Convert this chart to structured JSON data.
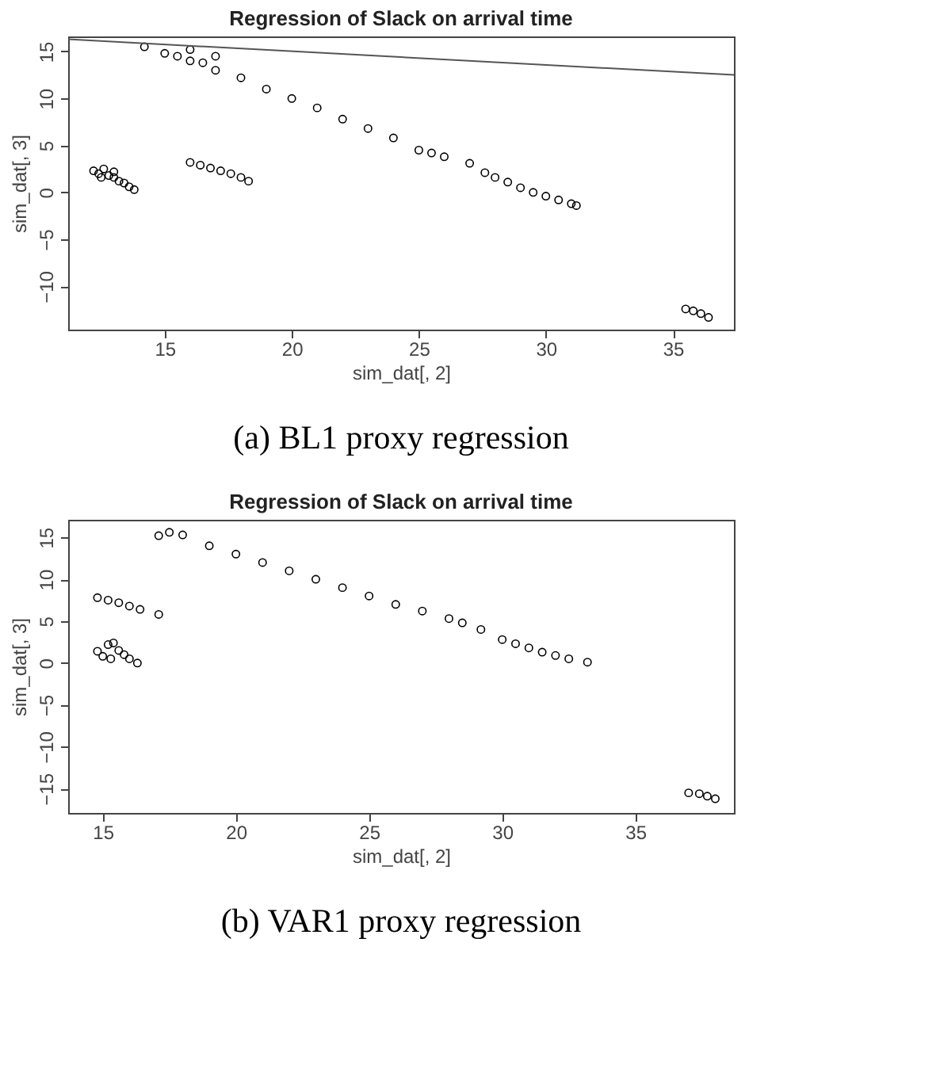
{
  "chart_data": [
    {
      "type": "scatter",
      "title": "Regression of Slack on arrival time",
      "xlabel": "sim_dat[, 2]",
      "ylabel": "sim_dat[, 3]",
      "marker": "circle",
      "grid": false,
      "xlim": [
        11.2,
        37.4
      ],
      "ylim": [
        -14.6,
        16.6
      ],
      "xticks": [
        15,
        20,
        25,
        30,
        35
      ],
      "yticks": [
        -10,
        -5,
        0,
        5,
        10,
        15
      ],
      "annotations": [
        "(a)  BL1 proxy regression"
      ],
      "series": [
        {
          "color": "#000000",
          "x": [
            12.2,
            12.4,
            12.5,
            12.6,
            12.8,
            13.0,
            13.0,
            13.2,
            13.4,
            13.6,
            13.8,
            16.0,
            16.4,
            16.8,
            17.2,
            17.6,
            18.0,
            18.3,
            14.2,
            15,
            15.5,
            16,
            16,
            16.5,
            17,
            17,
            18,
            19,
            20,
            21,
            22,
            23,
            24,
            25,
            25.5,
            26,
            27,
            27.6,
            28,
            28.5,
            29,
            29.5,
            30,
            30.5,
            31,
            31.2,
            35.5,
            35.8,
            36.1,
            36.4
          ],
          "values": [
            2.3,
            2.0,
            1.6,
            2.5,
            1.8,
            1.6,
            2.2,
            1.2,
            1.0,
            0.6,
            0.3,
            3.2,
            2.9,
            2.6,
            2.3,
            2.0,
            1.6,
            1.2,
            15.5,
            14.8,
            14.5,
            15.2,
            14,
            13.8,
            13,
            14.5,
            12.2,
            11,
            10,
            9,
            7.8,
            6.8,
            5.8,
            4.5,
            4.2,
            3.8,
            3.1,
            2.1,
            1.6,
            1.1,
            0.5,
            0,
            -0.4,
            -0.8,
            -1.2,
            -1.4,
            -12.4,
            -12.6,
            -12.9,
            -13.3
          ]
        },
        {
          "type": "line",
          "marker": "none",
          "color": "#555555",
          "x": [
            11.2,
            37.4
          ],
          "values": [
            16.3,
            12.5
          ]
        }
      ]
    },
    {
      "type": "scatter",
      "title": "Regression of Slack on arrival time",
      "xlabel": "sim_dat[, 2]",
      "ylabel": "sim_dat[, 3]",
      "marker": "circle",
      "grid": false,
      "xlim": [
        13.7,
        38.7
      ],
      "ylim": [
        -17.9,
        17.1
      ],
      "xticks": [
        15,
        20,
        25,
        30,
        35
      ],
      "yticks": [
        -15,
        -10,
        -5,
        0,
        5,
        10,
        15
      ],
      "annotations": [
        "(b)  VAR1 proxy regression"
      ],
      "series": [
        {
          "color": "#000000",
          "x": [
            14.8,
            15.0,
            15.2,
            15.3,
            15.4,
            15.6,
            15.8,
            16.0,
            16.3,
            14.8,
            15.2,
            15.6,
            16.0,
            16.4,
            17.1,
            17.1,
            17.5,
            18,
            19,
            20,
            21,
            22,
            23,
            24,
            25,
            26,
            27,
            28,
            28.5,
            29.2,
            30,
            30.5,
            31,
            31.5,
            32,
            32.5,
            33.2,
            37.0,
            37.4,
            37.7,
            38.0
          ],
          "values": [
            1.4,
            0.8,
            2.2,
            0.5,
            2.4,
            1.5,
            1.0,
            0.5,
            0,
            7.8,
            7.5,
            7.2,
            6.8,
            6.4,
            5.8,
            15.2,
            15.6,
            15.3,
            14,
            13,
            12,
            11,
            10,
            9,
            8,
            7,
            6.2,
            5.3,
            4.8,
            4,
            2.8,
            2.3,
            1.8,
            1.3,
            0.9,
            0.5,
            0.1,
            -15.5,
            -15.6,
            -15.9,
            -16.2
          ]
        }
      ]
    }
  ]
}
